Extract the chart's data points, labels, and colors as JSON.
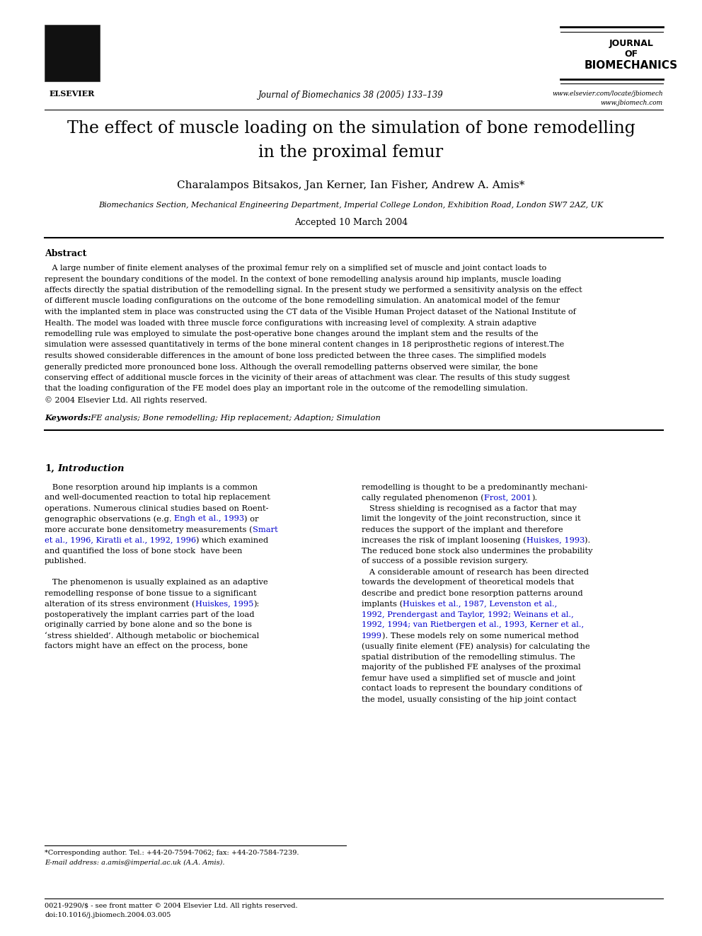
{
  "page_bg": "#ffffff",
  "page_width": 9.92,
  "page_height": 13.23,
  "dpi": 100,
  "journal_name_lines": [
    "JOURNAL",
    "OF",
    "BIOMECHANICS"
  ],
  "journal_citation": "Journal of Biomechanics 38 (2005) 133–139",
  "url1": "www.elsevier.com/locate/jbiomech",
  "url2": "www.jbiomech.com",
  "paper_title_line1": "The effect of muscle loading on the simulation of bone remodelling",
  "paper_title_line2": "in the proximal femur",
  "authors": "Charalampos Bitsakos, Jan Kerner, Ian Fisher, Andrew A. Amis*",
  "affiliation": "Biomechanics Section, Mechanical Engineering Department, Imperial College London, Exhibition Road, London SW7 2AZ, UK",
  "accepted": "Accepted 10 March 2004",
  "abstract_title": "Abstract",
  "keywords_label": "Keywords:",
  "keywords_text": "  FE analysis; Bone remodelling; Hip replacement; Adaption; Simulation",
  "section1_title": "1,  Introduction",
  "footnote_star": "*Corresponding author. Tel.: +44-20-7594-7062; fax: +44-20-7584-7239.",
  "footnote_email": "E-mail address: a.amis@imperial.ac.uk (A.A. Amis).",
  "bottom_left": "0021-9290/$ - see front matter © 2004 Elsevier Ltd. All rights reserved.",
  "bottom_doi": "doi:10.1016/j.jbiomech.2004.03.005"
}
